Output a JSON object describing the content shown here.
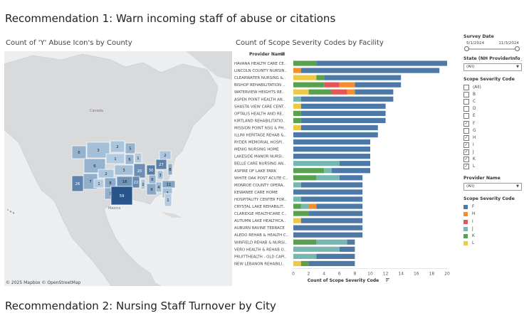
{
  "titles": {
    "rec1": "Recommendation 1: Warn incoming staff of abuse or citations",
    "rec2": "Recommendation 2: Nursing Staff Turnover by City"
  },
  "map": {
    "title": "Count of 'Y' Abuse Icon's by County",
    "credit": "© 2025 Mapbox  © OpenStreetMap",
    "places": {
      "canada": "Canada",
      "mexico": "Mexico"
    },
    "state_counts": [
      {
        "label": "6",
        "v": 6
      },
      {
        "label": "3",
        "v": 3
      },
      {
        "label": "2",
        "v": 2
      },
      {
        "label": "5",
        "v": 5
      },
      {
        "label": "6",
        "v": 6
      },
      {
        "label": "1",
        "v": 1
      },
      {
        "label": "5",
        "v": 5
      },
      {
        "label": "1",
        "v": 1
      },
      {
        "label": "20",
        "v": 20
      },
      {
        "label": "7",
        "v": 7
      },
      {
        "label": "2",
        "v": 2
      },
      {
        "label": "3",
        "v": 3
      },
      {
        "label": "1",
        "v": 1
      },
      {
        "label": "8",
        "v": 8
      },
      {
        "label": "18",
        "v": 18
      },
      {
        "label": "22",
        "v": 22
      },
      {
        "label": "2",
        "v": 2
      },
      {
        "label": "26",
        "v": 26
      },
      {
        "label": "7",
        "v": 7
      },
      {
        "label": "59",
        "v": 59
      },
      {
        "label": "30",
        "v": 30
      },
      {
        "label": "27",
        "v": 27
      },
      {
        "label": "8",
        "v": 8
      },
      {
        "label": "3",
        "v": 3
      },
      {
        "label": "6",
        "v": 6
      },
      {
        "label": "9",
        "v": 9
      },
      {
        "label": "4",
        "v": 4
      },
      {
        "label": "11",
        "v": 11
      },
      {
        "label": "3",
        "v": 3
      },
      {
        "label": "1",
        "v": 1
      },
      {
        "label": "2",
        "v": 2
      }
    ]
  },
  "chart_data": {
    "type": "bar",
    "title": "Count of Scope Severity Codes by Facility",
    "ylabel": "Provider Name",
    "xlabel": "Count of Scope Severity Code",
    "xlim": [
      0,
      20
    ],
    "xticks": [
      "0",
      "2",
      "4",
      "6",
      "8",
      "10",
      "12",
      "14",
      "16",
      "18",
      "20"
    ],
    "series_names": [
      "F",
      "H",
      "I",
      "J",
      "K",
      "L"
    ],
    "colors": {
      "F": "#4e79a7",
      "H": "#f28e2b",
      "I": "#e15759",
      "J": "#76b7b2",
      "K": "#59a14f",
      "L": "#edc948"
    },
    "categories": [
      "HAVANA HEALTH CARE CE..",
      "LINCOLN COUNTY NURSIN..",
      "CLEARWATER NURSING &..",
      "BISHOP REHABILITATION ..",
      "WATERVIEW HEIGHTS RE..",
      "ASPEN POINT HEALTH AN..",
      "SHASTA VIEW CARE CENT..",
      "OPTALIS HEALTH AND RE..",
      "KIRTLAND REHABILITATIO..",
      "MISSION POINT NSG & PH..",
      "ILLINI HERITAGE REHAB &..",
      "RYDER MEMORIAL HOSPI..",
      "MENIG NURSING HOME",
      "LAKESIDE MANOR NURSI..",
      "BELLE CARE NURSING AN..",
      "ASPIRE OF LAKE PARK",
      "WHITE OAK POST ACUTE C..",
      "MONROE COUNTY OPERA..",
      "KEWANEE CARE HOME",
      "HOSPITALITY CENTER FOR..",
      "CRYSTAL LAKE REHABILIT..",
      "CLARIDGE HEALTHCARE C..",
      "AUTUMN LAKE HEALTHCA..",
      "AUBURN RAVINE TERRACE",
      "ALEDO REHAB & HEALTH C..",
      "WINFIELD REHAB & NURSI..",
      "VERO HEALTH & REHAB O..",
      "PRUITTHEALTH - OLD CAPI..",
      "NEW LEBANON REHABILI.."
    ],
    "segments": [
      {
        "L": 0,
        "K": 3,
        "J": 0,
        "I": 0,
        "H": 0,
        "F": 17
      },
      {
        "L": 0,
        "K": 0,
        "J": 0,
        "I": 0,
        "H": 1,
        "F": 18
      },
      {
        "L": 3,
        "K": 1,
        "J": 0,
        "I": 0,
        "H": 0,
        "F": 10
      },
      {
        "L": 0,
        "K": 4,
        "J": 0,
        "I": 2,
        "H": 2,
        "F": 6
      },
      {
        "L": 2,
        "K": 3,
        "J": 0,
        "I": 2,
        "H": 1,
        "F": 5
      },
      {
        "L": 0,
        "K": 0,
        "J": 1,
        "I": 0,
        "H": 0,
        "F": 12
      },
      {
        "L": 1,
        "K": 0,
        "J": 0,
        "I": 0,
        "H": 0,
        "F": 11
      },
      {
        "L": 0,
        "K": 1,
        "J": 0,
        "I": 0,
        "H": 0,
        "F": 11
      },
      {
        "L": 0,
        "K": 1,
        "J": 0,
        "I": 0,
        "H": 0,
        "F": 11
      },
      {
        "L": 1,
        "K": 0,
        "J": 0,
        "I": 0,
        "H": 0,
        "F": 10
      },
      {
        "L": 0,
        "K": 0,
        "J": 0,
        "I": 0,
        "H": 0,
        "F": 11
      },
      {
        "L": 0,
        "K": 0,
        "J": 0,
        "I": 0,
        "H": 0,
        "F": 10
      },
      {
        "L": 0,
        "K": 0,
        "J": 0,
        "I": 0,
        "H": 0,
        "F": 10
      },
      {
        "L": 0,
        "K": 0,
        "J": 0,
        "I": 0,
        "H": 0,
        "F": 10
      },
      {
        "L": 0,
        "K": 0,
        "J": 6,
        "I": 0,
        "H": 0,
        "F": 4
      },
      {
        "L": 0,
        "K": 4,
        "J": 1,
        "I": 0,
        "H": 0,
        "F": 5
      },
      {
        "L": 0,
        "K": 3,
        "J": 3,
        "I": 0,
        "H": 0,
        "F": 3
      },
      {
        "L": 0,
        "K": 0,
        "J": 1,
        "I": 0,
        "H": 0,
        "F": 8
      },
      {
        "L": 0,
        "K": 0,
        "J": 0,
        "I": 0,
        "H": 0,
        "F": 9
      },
      {
        "L": 0,
        "K": 0,
        "J": 1,
        "I": 0,
        "H": 0,
        "F": 8
      },
      {
        "L": 0,
        "K": 1,
        "J": 1,
        "I": 0,
        "H": 1,
        "F": 6
      },
      {
        "L": 0,
        "K": 2,
        "J": 0,
        "I": 0,
        "H": 0,
        "F": 7
      },
      {
        "L": 1,
        "K": 0,
        "J": 0,
        "I": 0,
        "H": 0,
        "F": 8
      },
      {
        "L": 0,
        "K": 0,
        "J": 0,
        "I": 0,
        "H": 0,
        "F": 9
      },
      {
        "L": 0,
        "K": 0,
        "J": 0,
        "I": 0,
        "H": 0,
        "F": 9
      },
      {
        "L": 0,
        "K": 3,
        "J": 4,
        "I": 0,
        "H": 0,
        "F": 1
      },
      {
        "L": 0,
        "K": 0,
        "J": 6,
        "I": 0,
        "H": 0,
        "F": 2
      },
      {
        "L": 0,
        "K": 0,
        "J": 3,
        "I": 0,
        "H": 0,
        "F": 5
      },
      {
        "L": 1,
        "K": 1,
        "J": 0,
        "I": 0,
        "H": 0,
        "F": 6
      }
    ]
  },
  "filters": {
    "survey_date": {
      "title": "Survey Date",
      "start": "5/1/2024",
      "end": "11/3/2024",
      "start_frac": 0.0,
      "end_frac": 1.0
    },
    "state": {
      "title": "State (NH ProviderInfo J...",
      "value": "(All)"
    },
    "severity": {
      "title": "Scope Severity Code",
      "items": [
        {
          "label": "(All)",
          "checked": false
        },
        {
          "label": "B",
          "checked": false
        },
        {
          "label": "C",
          "checked": false
        },
        {
          "label": "D",
          "checked": false
        },
        {
          "label": "E",
          "checked": false
        },
        {
          "label": "F",
          "checked": true
        },
        {
          "label": "G",
          "checked": false
        },
        {
          "label": "H",
          "checked": true
        },
        {
          "label": "I",
          "checked": true
        },
        {
          "label": "J",
          "checked": true
        },
        {
          "label": "K",
          "checked": true
        },
        {
          "label": "L",
          "checked": true
        }
      ]
    },
    "provider": {
      "title": "Provider Name",
      "value": "(All)"
    }
  },
  "legend": {
    "title": "Scope Severity Code",
    "items": [
      {
        "label": "F",
        "color": "#4e79a7"
      },
      {
        "label": "H",
        "color": "#f28e2b"
      },
      {
        "label": "I",
        "color": "#e15759"
      },
      {
        "label": "J",
        "color": "#76b7b2"
      },
      {
        "label": "K",
        "color": "#59a14f"
      },
      {
        "label": "L",
        "color": "#edc948"
      }
    ]
  }
}
